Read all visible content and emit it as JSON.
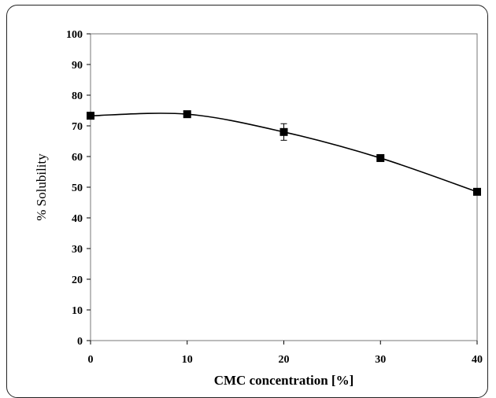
{
  "chart_data": {
    "type": "line",
    "title": "",
    "xlabel": "CMC concentration [%]",
    "ylabel": "% Solubility",
    "x": [
      0,
      10,
      20,
      30,
      40
    ],
    "series": [
      {
        "values": [
          73.3,
          73.8,
          68.0,
          59.5,
          48.5
        ],
        "error": [
          0.6,
          0.6,
          2.7,
          1.0,
          0.5
        ],
        "marker": "square",
        "color": "#000000"
      }
    ],
    "xlim": [
      0,
      40
    ],
    "ylim": [
      0,
      100
    ],
    "xticks": [
      "0",
      "10",
      "20",
      "30",
      "40"
    ],
    "yticks": [
      "0",
      "10",
      "20",
      "30",
      "40",
      "50",
      "60",
      "70",
      "80",
      "90",
      "100"
    ],
    "grid": false,
    "legend": "none"
  }
}
